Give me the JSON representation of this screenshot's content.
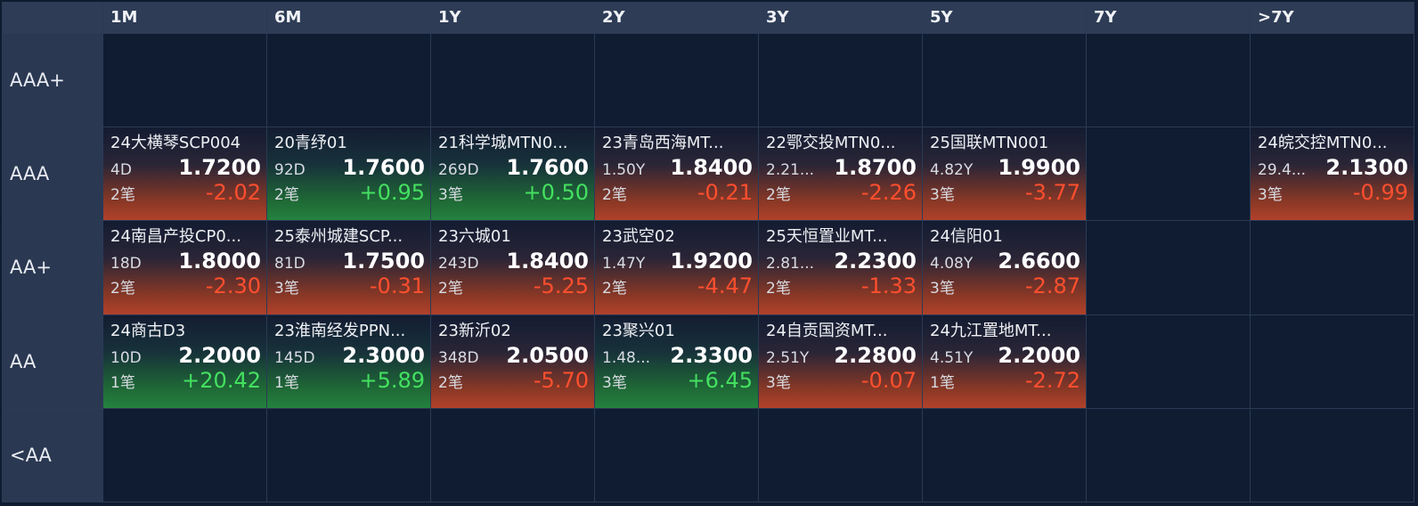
{
  "table": {
    "columns": [
      "1M",
      "6M",
      "1Y",
      "2Y",
      "3Y",
      "5Y",
      "7Y",
      ">7Y"
    ],
    "rows": [
      {
        "label": "AAA+",
        "cells": [
          null,
          null,
          null,
          null,
          null,
          null,
          null,
          null
        ]
      },
      {
        "label": "AAA",
        "cells": [
          {
            "name": "24大横琴SCP004",
            "tenor": "4D",
            "price": "1.7200",
            "count": "2笔",
            "change": "-2.02"
          },
          {
            "name": "20青纾01",
            "tenor": "92D",
            "price": "1.7600",
            "count": "2笔",
            "change": "+0.95"
          },
          {
            "name": "21科学城MTN0...",
            "tenor": "269D",
            "price": "1.7600",
            "count": "3笔",
            "change": "+0.50"
          },
          {
            "name": "23青岛西海MT...",
            "tenor": "1.50Y",
            "price": "1.8400",
            "count": "2笔",
            "change": "-0.21"
          },
          {
            "name": "22鄂交投MTN0...",
            "tenor": "2.21...",
            "price": "1.8700",
            "count": "2笔",
            "change": "-2.26"
          },
          {
            "name": "25国联MTN001",
            "tenor": "4.82Y",
            "price": "1.9900",
            "count": "3笔",
            "change": "-3.77"
          },
          null,
          {
            "name": "24皖交控MTN0...",
            "tenor": "29.4...",
            "price": "2.1300",
            "count": "3笔",
            "change": "-0.99"
          }
        ]
      },
      {
        "label": "AA+",
        "cells": [
          {
            "name": "24南昌产投CP0...",
            "tenor": "18D",
            "price": "1.8000",
            "count": "2笔",
            "change": "-2.30"
          },
          {
            "name": "25泰州城建SCP...",
            "tenor": "81D",
            "price": "1.7500",
            "count": "3笔",
            "change": "-0.31"
          },
          {
            "name": "23六城01",
            "tenor": "243D",
            "price": "1.8400",
            "count": "2笔",
            "change": "-5.25"
          },
          {
            "name": "23武空02",
            "tenor": "1.47Y",
            "price": "1.9200",
            "count": "2笔",
            "change": "-4.47"
          },
          {
            "name": "25天恒置业MT...",
            "tenor": "2.81...",
            "price": "2.2300",
            "count": "2笔",
            "change": "-1.33"
          },
          {
            "name": "24信阳01",
            "tenor": "4.08Y",
            "price": "2.6600",
            "count": "3笔",
            "change": "-2.87"
          },
          null,
          null
        ]
      },
      {
        "label": "AA",
        "cells": [
          {
            "name": "24商古D3",
            "tenor": "10D",
            "price": "2.2000",
            "count": "1笔",
            "change": "+20.42"
          },
          {
            "name": "23淮南经发PPN...",
            "tenor": "145D",
            "price": "2.3000",
            "count": "1笔",
            "change": "+5.89"
          },
          {
            "name": "23新沂02",
            "tenor": "348D",
            "price": "2.0500",
            "count": "2笔",
            "change": "-5.70"
          },
          {
            "name": "23聚兴01",
            "tenor": "1.48...",
            "price": "2.3300",
            "count": "3笔",
            "change": "+6.45"
          },
          {
            "name": "24自贡国资MT...",
            "tenor": "2.51Y",
            "price": "2.2800",
            "count": "3笔",
            "change": "-0.07"
          },
          {
            "name": "24九江置地MT...",
            "tenor": "4.51Y",
            "price": "2.2000",
            "count": "1笔",
            "change": "-2.72"
          },
          null,
          null
        ]
      },
      {
        "label": "<AA",
        "cells": [
          null,
          null,
          null,
          null,
          null,
          null,
          null,
          null
        ]
      }
    ]
  }
}
